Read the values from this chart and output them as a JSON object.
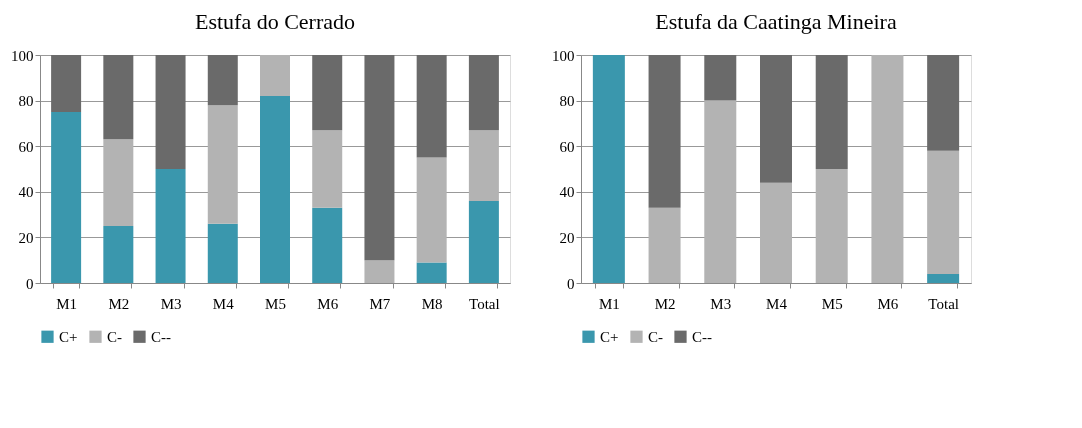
{
  "chart_data": [
    {
      "type": "bar",
      "title": "Estufa do Cerrado",
      "categories": [
        "M1",
        "M2",
        "M3",
        "M4",
        "M5",
        "M6",
        "M7",
        "M8",
        "Total"
      ],
      "stacked": true,
      "ylim": [
        0,
        100
      ],
      "yticks": [
        0,
        20,
        40,
        60,
        80,
        100
      ],
      "grid": "y",
      "legend": "bottom",
      "series": [
        {
          "name": "C+",
          "color": "#3a97ad",
          "values": [
            75,
            25,
            50,
            26,
            82,
            33,
            0,
            9,
            36
          ]
        },
        {
          "name": "C-",
          "color": "#b3b3b3",
          "values": [
            0,
            38,
            0,
            52,
            18,
            34,
            10,
            46,
            31
          ]
        },
        {
          "name": "C--",
          "color": "#6a6a6a",
          "values": [
            25,
            37,
            50,
            22,
            0,
            33,
            90,
            45,
            33
          ]
        }
      ]
    },
    {
      "type": "bar",
      "title": "Estufa da Caatinga Mineira",
      "categories": [
        "M1",
        "M2",
        "M3",
        "M4",
        "M5",
        "M6",
        "Total"
      ],
      "stacked": true,
      "ylim": [
        0,
        100
      ],
      "yticks": [
        0,
        20,
        40,
        60,
        80,
        100
      ],
      "grid": "y",
      "legend": "bottom",
      "series": [
        {
          "name": "C+",
          "color": "#3a97ad",
          "values": [
            100,
            0,
            0,
            0,
            0,
            0,
            4
          ]
        },
        {
          "name": "C-",
          "color": "#b3b3b3",
          "values": [
            0,
            33,
            80,
            44,
            50,
            100,
            54
          ]
        },
        {
          "name": "C--",
          "color": "#6a6a6a",
          "values": [
            0,
            67,
            20,
            56,
            50,
            0,
            42
          ]
        }
      ]
    }
  ]
}
